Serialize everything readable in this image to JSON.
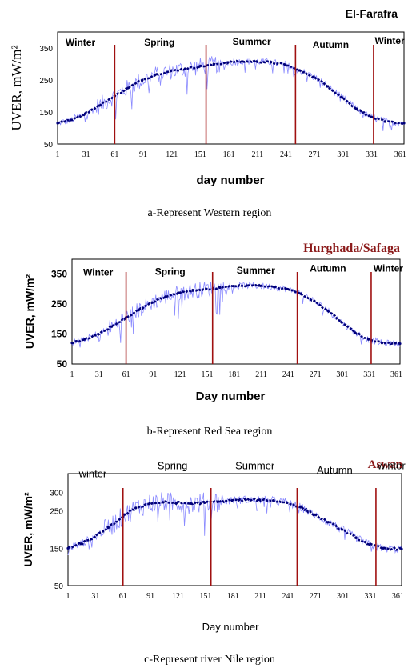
{
  "colors": {
    "daily": "#8c8cff",
    "mean": "#00007a",
    "season_line": "#a01010",
    "frame": "#000000",
    "red_title": "#8b1a1a"
  },
  "chart_data": [
    {
      "type": "line",
      "title": "El-Farafra",
      "caption": "a-Represent Western region",
      "xlabel": "day number",
      "ylabel": "UVER, mW/m²",
      "xlim": [
        1,
        365
      ],
      "ylim": [
        50,
        400
      ],
      "xticks": [
        1,
        31,
        61,
        91,
        121,
        151,
        181,
        211,
        241,
        271,
        301,
        331,
        361
      ],
      "yticks": [
        50,
        150,
        250,
        350
      ],
      "season_boundaries": [
        61,
        157,
        251,
        333
      ],
      "season_labels": [
        {
          "text": "Winter",
          "x": 25,
          "y": 358
        },
        {
          "text": "Spring",
          "x": 108,
          "y": 358
        },
        {
          "text": "Summer",
          "x": 205,
          "y": 360
        },
        {
          "text": "Autumn",
          "x": 288,
          "y": 350
        },
        {
          "text": "Winter",
          "x": 350,
          "y": 362
        }
      ],
      "series": [
        {
          "x": [
            1,
            15,
            30,
            45,
            61,
            75,
            90,
            105,
            120,
            135,
            150,
            165,
            180,
            195,
            210,
            225,
            240,
            255,
            270,
            285,
            300,
            315,
            330,
            345,
            365
          ],
          "values": [
            115,
            125,
            145,
            170,
            200,
            225,
            250,
            268,
            278,
            285,
            292,
            298,
            305,
            308,
            308,
            305,
            298,
            280,
            260,
            230,
            195,
            160,
            135,
            120,
            115
          ]
        }
      ]
    },
    {
      "type": "line",
      "title": "Hurghada/Safaga",
      "caption": "b-Represent Red Sea region",
      "xlabel": "Day number",
      "ylabel": "UVER, mW/m²",
      "xlim": [
        1,
        365
      ],
      "ylim": [
        50,
        400
      ],
      "xticks": [
        1,
        31,
        61,
        91,
        121,
        151,
        181,
        211,
        241,
        271,
        301,
        331,
        361
      ],
      "yticks": [
        50,
        150,
        250,
        350
      ],
      "season_boundaries": [
        61,
        157,
        251,
        333
      ],
      "season_labels": [
        {
          "text": "Winter",
          "x": 30,
          "y": 345
        },
        {
          "text": "Spring",
          "x": 110,
          "y": 348
        },
        {
          "text": "Summer",
          "x": 205,
          "y": 352
        },
        {
          "text": "Autumn",
          "x": 285,
          "y": 358
        },
        {
          "text": "Winter",
          "x": 352,
          "y": 358
        }
      ],
      "series": [
        {
          "x": [
            1,
            15,
            30,
            45,
            61,
            75,
            90,
            105,
            120,
            135,
            150,
            165,
            180,
            195,
            210,
            225,
            240,
            255,
            270,
            285,
            300,
            315,
            330,
            345,
            365
          ],
          "values": [
            120,
            132,
            150,
            175,
            205,
            230,
            255,
            275,
            288,
            295,
            300,
            305,
            310,
            312,
            311,
            308,
            300,
            285,
            260,
            228,
            190,
            155,
            132,
            120,
            118
          ]
        }
      ]
    },
    {
      "type": "line",
      "title": "Aswan",
      "caption": "c-Represent river Nile region",
      "xlabel": "Day number",
      "ylabel": "UVER, mW/m²",
      "xlim": [
        1,
        365
      ],
      "ylim": [
        50,
        350
      ],
      "xticks": [
        1,
        31,
        61,
        91,
        121,
        151,
        181,
        211,
        241,
        271,
        301,
        331,
        361
      ],
      "yticks": [
        50,
        150,
        250,
        300
      ],
      "season_boundaries": [
        61,
        157,
        251,
        337
      ],
      "season_labels": [
        {
          "text": "winter",
          "x": 28,
          "y": 340
        },
        {
          "text": "Spring",
          "x": 115,
          "y": 362
        },
        {
          "text": "Summer",
          "x": 205,
          "y": 362
        },
        {
          "text": "Autumn",
          "x": 292,
          "y": 350
        },
        {
          "text": "winter",
          "x": 354,
          "y": 362
        }
      ],
      "series": [
        {
          "x": [
            1,
            15,
            30,
            45,
            61,
            75,
            90,
            105,
            120,
            135,
            150,
            165,
            180,
            195,
            210,
            225,
            240,
            255,
            270,
            285,
            300,
            315,
            330,
            345,
            365
          ],
          "values": [
            150,
            162,
            180,
            205,
            235,
            258,
            270,
            273,
            272,
            270,
            272,
            275,
            278,
            280,
            280,
            278,
            272,
            260,
            240,
            220,
            200,
            178,
            160,
            150,
            148
          ]
        }
      ]
    }
  ]
}
